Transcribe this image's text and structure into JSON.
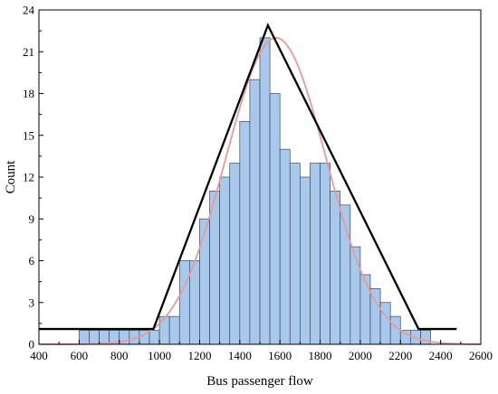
{
  "chart_data": {
    "type": "bar",
    "title": "",
    "xlabel": "Bus passenger flow",
    "ylabel": "Count",
    "xlim": [
      400,
      2600
    ],
    "ylim": [
      0,
      24
    ],
    "xticks": [
      400,
      600,
      800,
      1000,
      1200,
      1400,
      1600,
      1800,
      2000,
      2200,
      2400,
      2600
    ],
    "yticks": [
      0,
      3,
      6,
      9,
      12,
      15,
      18,
      21,
      24
    ],
    "grid": false,
    "bin_width": 50,
    "bins": [
      {
        "start": 600,
        "count": 1
      },
      {
        "start": 650,
        "count": 1
      },
      {
        "start": 700,
        "count": 1
      },
      {
        "start": 750,
        "count": 1
      },
      {
        "start": 800,
        "count": 1
      },
      {
        "start": 850,
        "count": 1
      },
      {
        "start": 900,
        "count": 1
      },
      {
        "start": 950,
        "count": 1
      },
      {
        "start": 1000,
        "count": 2
      },
      {
        "start": 1050,
        "count": 2
      },
      {
        "start": 1100,
        "count": 6
      },
      {
        "start": 1150,
        "count": 6
      },
      {
        "start": 1200,
        "count": 9
      },
      {
        "start": 1250,
        "count": 11
      },
      {
        "start": 1300,
        "count": 12
      },
      {
        "start": 1350,
        "count": 13
      },
      {
        "start": 1400,
        "count": 16
      },
      {
        "start": 1450,
        "count": 19
      },
      {
        "start": 1500,
        "count": 22
      },
      {
        "start": 1550,
        "count": 18
      },
      {
        "start": 1600,
        "count": 14
      },
      {
        "start": 1650,
        "count": 13
      },
      {
        "start": 1700,
        "count": 12
      },
      {
        "start": 1750,
        "count": 13
      },
      {
        "start": 1800,
        "count": 13
      },
      {
        "start": 1850,
        "count": 11
      },
      {
        "start": 1900,
        "count": 10
      },
      {
        "start": 1950,
        "count": 7
      },
      {
        "start": 2000,
        "count": 5
      },
      {
        "start": 2050,
        "count": 4
      },
      {
        "start": 2100,
        "count": 3
      },
      {
        "start": 2150,
        "count": 2
      },
      {
        "start": 2200,
        "count": 1
      },
      {
        "start": 2250,
        "count": 1
      },
      {
        "start": 2300,
        "count": 1
      }
    ],
    "bar_color": "#a9c9ec",
    "bar_edge_color": "#3a4a5a",
    "triangular_fit": {
      "color": "#000000",
      "points": [
        [
          400,
          1.1
        ],
        [
          970,
          1.1
        ],
        [
          1540,
          22.9
        ],
        [
          2290,
          1.1
        ],
        [
          2480,
          1.1
        ]
      ]
    },
    "normal_fit": {
      "color": "#e89a9a",
      "mean": 1580,
      "sd": 250,
      "peak": 22
    }
  }
}
